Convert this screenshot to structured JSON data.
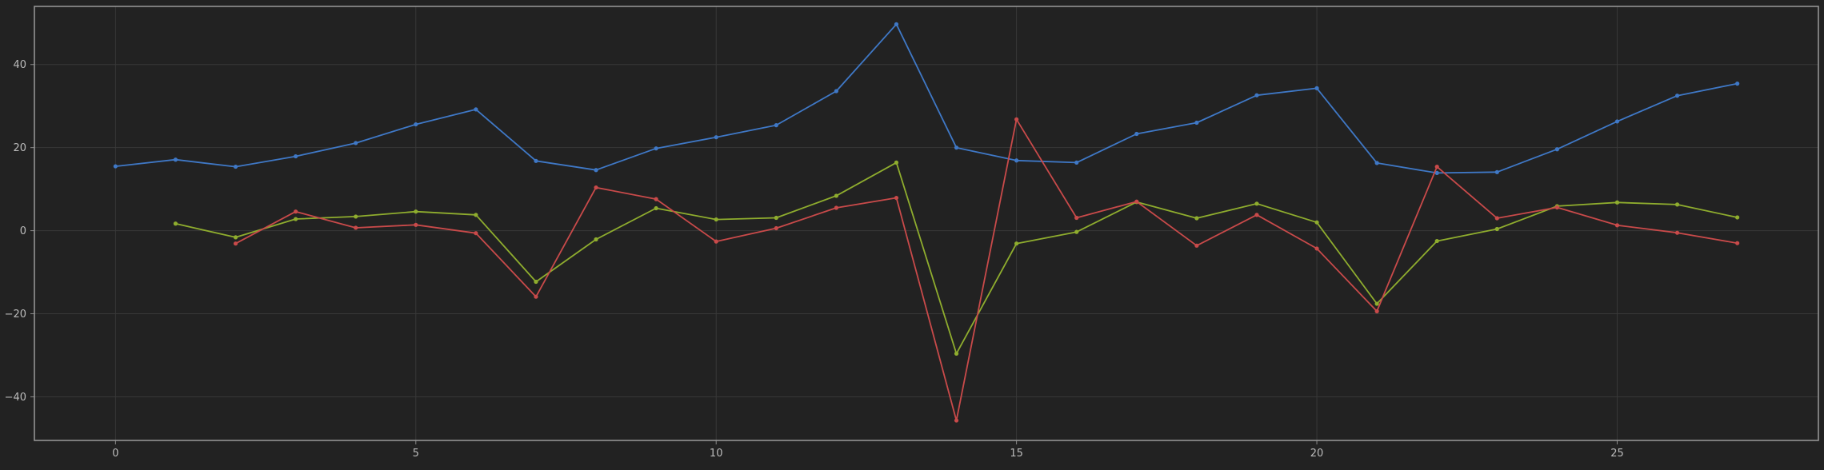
{
  "chart_data": {
    "type": "line",
    "title": "",
    "xlabel": "",
    "ylabel": "",
    "xlim": [
      -1.35,
      28.35
    ],
    "ylim": [
      -50.5,
      54
    ],
    "xticks": [
      0,
      5,
      10,
      15,
      20,
      25
    ],
    "xtick_labels": [
      "0",
      "5",
      "10",
      "15",
      "20",
      "25"
    ],
    "yticks": [
      -40,
      -20,
      0,
      20,
      40
    ],
    "ytick_labels": [
      "−40",
      "−20",
      "0",
      "20",
      "40"
    ],
    "grid": true,
    "legend": "none",
    "colors": {
      "background": "#222222",
      "frame": "#9a9a9a",
      "grid": "#383838",
      "tick_text": "#bbbbbb"
    },
    "series": [
      {
        "color": "#3f78c6",
        "x": [
          0,
          1,
          2,
          3,
          4,
          5,
          6,
          7,
          8,
          9,
          10,
          11,
          12,
          13,
          14,
          15,
          16,
          17,
          18,
          19,
          20,
          21,
          22,
          23,
          24,
          25,
          26,
          27
        ],
        "y": [
          15.5,
          17.1,
          15.4,
          17.9,
          21.1,
          25.6,
          29.2,
          16.8,
          14.6,
          19.8,
          22.5,
          25.4,
          33.6,
          49.7,
          20.0,
          16.9,
          16.4,
          23.3,
          26.0,
          32.6,
          34.3,
          16.3,
          13.9,
          14.1,
          19.6,
          26.3,
          32.5,
          35.4
        ]
      },
      {
        "color": "#8fad2e",
        "x": [
          1,
          2,
          3,
          4,
          5,
          6,
          7,
          8,
          9,
          10,
          11,
          12,
          13,
          14,
          15,
          16,
          17,
          18,
          19,
          20,
          21,
          22,
          23,
          24,
          25,
          26,
          27
        ],
        "y": [
          1.7,
          -1.6,
          2.8,
          3.4,
          4.6,
          3.8,
          -12.3,
          -2.1,
          5.4,
          2.7,
          3.1,
          8.4,
          16.4,
          -29.6,
          -3.1,
          -0.3,
          6.9,
          3.0,
          6.5,
          2.0,
          -17.6,
          -2.5,
          0.4,
          5.9,
          6.8,
          6.3,
          3.2
        ]
      },
      {
        "color": "#c94a4a",
        "x": [
          2,
          3,
          4,
          5,
          6,
          7,
          8,
          9,
          10,
          11,
          12,
          13,
          14,
          15,
          16,
          17,
          18,
          19,
          20,
          21,
          22,
          23,
          24,
          25,
          26,
          27
        ],
        "y": [
          -3.1,
          4.6,
          0.7,
          1.4,
          -0.6,
          -15.9,
          10.4,
          7.6,
          -2.6,
          0.6,
          5.5,
          7.9,
          -45.7,
          26.8,
          3.1,
          7.0,
          -3.6,
          3.8,
          -4.3,
          -19.4,
          15.4,
          3.0,
          5.6,
          1.3,
          -0.5,
          -3.0
        ]
      }
    ]
  }
}
